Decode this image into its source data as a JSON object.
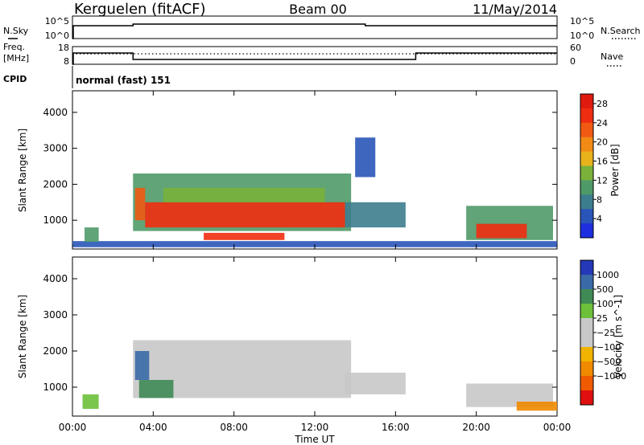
{
  "header": {
    "radar": "Kerguelen (fitACF)",
    "beam": "Beam 00",
    "date": "11/May/2014"
  },
  "status_panels": {
    "nsky_label": "N.Sky",
    "nsearch_label": "N.Search",
    "counts_tick_top": "10^5",
    "counts_tick_bottom": "10^0",
    "freq_label": "Freq.",
    "freq_unit": "[MHz]",
    "freq_ticks": [
      "18",
      "8"
    ],
    "nave_label": "Nave",
    "nave_ticks": [
      "60",
      "0"
    ],
    "cpid_label": "CPID",
    "cpid_value": "normal (fast) 151"
  },
  "chart_data": [
    {
      "type": "heatmap",
      "title": "",
      "xlabel": "Time UT",
      "ylabel": "Slant Range [km]",
      "x_ticks": [
        "00:00",
        "04:00",
        "08:00",
        "12:00",
        "16:00",
        "20:00",
        "00:00"
      ],
      "y_ticks": [
        "1000",
        "2000",
        "3000",
        "4000"
      ],
      "ylim": [
        200,
        4600
      ],
      "xlim_hours": [
        0,
        24
      ],
      "colorbar": {
        "label": "Power [dB]",
        "ticks": [
          "4",
          "8",
          "12",
          "16",
          "20",
          "24",
          "28"
        ],
        "range": [
          0,
          30
        ],
        "colors": [
          "#1e2fe0",
          "#2a55b8",
          "#3d7d8e",
          "#4f9a68",
          "#79b13a",
          "#e8b21b",
          "#f28a16",
          "#f05a12",
          "#ef2d10",
          "#e11a10"
        ]
      },
      "regions": [
        {
          "t0": 0.0,
          "t1": 24.0,
          "r0": 250,
          "r1": 420,
          "v": 3
        },
        {
          "t0": 0.6,
          "t1": 1.3,
          "r0": 400,
          "r1": 800,
          "v": 9
        },
        {
          "t0": 3.0,
          "t1": 13.8,
          "r0": 700,
          "r1": 2300,
          "v": 10
        },
        {
          "t0": 3.1,
          "t1": 3.6,
          "r0": 1000,
          "r1": 1900,
          "v": 23
        },
        {
          "t0": 3.6,
          "t1": 13.5,
          "r0": 800,
          "r1": 1500,
          "v": 24
        },
        {
          "t0": 4.5,
          "t1": 12.5,
          "r0": 1500,
          "r1": 1900,
          "v": 12
        },
        {
          "t0": 6.5,
          "t1": 10.5,
          "r0": 450,
          "r1": 650,
          "v": 26
        },
        {
          "t0": 13.5,
          "t1": 16.5,
          "r0": 800,
          "r1": 1500,
          "v": 6
        },
        {
          "t0": 14.0,
          "t1": 15.0,
          "r0": 2200,
          "r1": 3300,
          "v": 5
        },
        {
          "t0": 19.5,
          "t1": 23.8,
          "r0": 450,
          "r1": 1400,
          "v": 10
        },
        {
          "t0": 20.0,
          "t1": 22.5,
          "r0": 500,
          "r1": 900,
          "v": 24
        }
      ]
    },
    {
      "type": "heatmap",
      "title": "",
      "xlabel": "Time UT",
      "ylabel": "Slant Range [km]",
      "x_ticks": [
        "00:00",
        "04:00",
        "08:00",
        "12:00",
        "16:00",
        "20:00",
        "00:00"
      ],
      "y_ticks": [
        "1000",
        "2000",
        "3000",
        "4000"
      ],
      "ylim": [
        200,
        4600
      ],
      "xlim_hours": [
        0,
        24
      ],
      "colorbar": {
        "label": "Velocity [m s^-1]",
        "ticks": [
          "1000",
          "500",
          "100",
          "25",
          "−25",
          "−100",
          "−500",
          "−1000"
        ],
        "colors": [
          "#2438b8",
          "#3a6aa8",
          "#3f8a55",
          "#6cc03a",
          "#c8c8c8",
          "#c8c8c8",
          "#f0b400",
          "#f08a00",
          "#f05a00",
          "#e01010"
        ]
      },
      "regions": [
        {
          "t0": 0.5,
          "t1": 1.3,
          "r0": 400,
          "r1": 800,
          "v": 25
        },
        {
          "t0": 3.0,
          "t1": 13.8,
          "r0": 700,
          "r1": 2300,
          "v": 0
        },
        {
          "t0": 3.1,
          "t1": 3.8,
          "r0": 1200,
          "r1": 2000,
          "v": 700
        },
        {
          "t0": 3.3,
          "t1": 5.0,
          "r0": 700,
          "r1": 1200,
          "v": 150
        },
        {
          "t0": 13.5,
          "t1": 16.5,
          "r0": 800,
          "r1": 1400,
          "v": 0
        },
        {
          "t0": 19.5,
          "t1": 23.8,
          "r0": 450,
          "r1": 1100,
          "v": 0
        },
        {
          "t0": 22.0,
          "t1": 24.0,
          "r0": 350,
          "r1": 600,
          "v": -120
        }
      ]
    }
  ]
}
